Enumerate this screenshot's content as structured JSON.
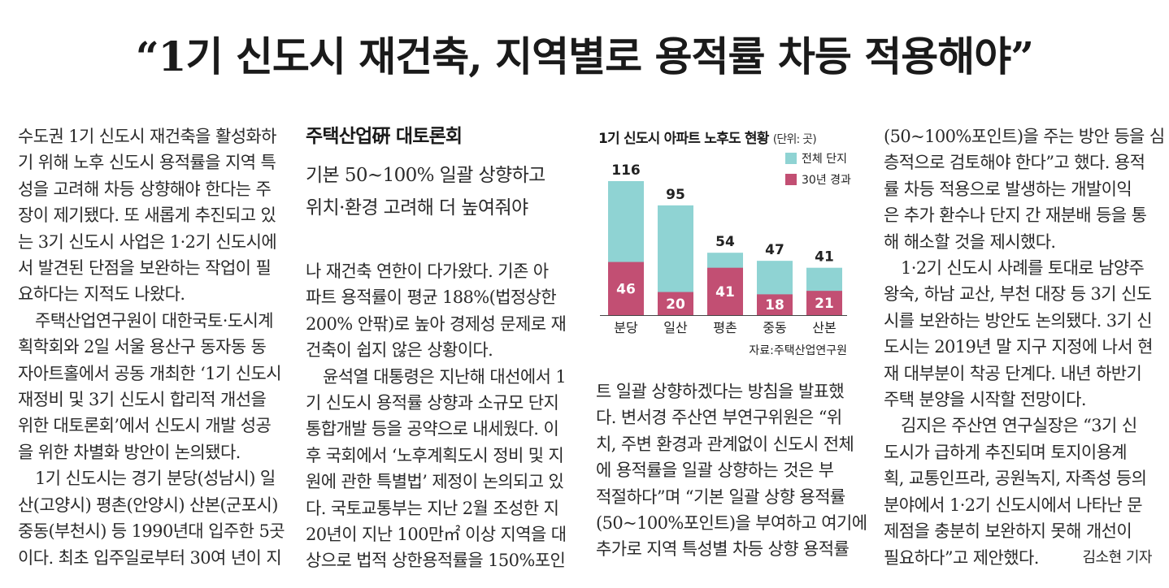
{
  "headline": "“1기 신도시 재건축, 지역별로 용적률 차등 적용해야”",
  "sidebar": {
    "kicker": "주택산업硏 대토론회",
    "subheads": [
      "기본 50~100% 일괄 상향하고",
      "위치·환경 고려해 더 높여줘야"
    ]
  },
  "columns": [
    [
      {
        "text": "수도권 1기 신도시 재건축을 활성화하",
        "indent": false
      },
      {
        "text": "기 위해 노후 신도시 용적률을 지역 특",
        "indent": false
      },
      {
        "text": "성을 고려해 차등 상향해야 한다는 주",
        "indent": false
      },
      {
        "text": "장이 제기됐다. 또 새롭게 추진되고 있",
        "indent": false
      },
      {
        "text": "는 3기 신도시 사업은 1·2기 신도시에",
        "indent": false
      },
      {
        "text": "서 발견된 단점을 보완하는 작업이 필",
        "indent": false
      },
      {
        "text": "요하다는 지적도 나왔다.",
        "indent": false
      },
      {
        "text": "주택산업연구원이 대한국토·도시계",
        "indent": true
      },
      {
        "text": "획학회와 2일 서울 용산구 동자동 동",
        "indent": false
      },
      {
        "text": "자아트홀에서 공동 개최한 ‘1기 신도시",
        "indent": false
      },
      {
        "text": "재정비 및 3기 신도시 합리적 개선을",
        "indent": false
      },
      {
        "text": "위한 대토론회’에서 신도시 개발 성공",
        "indent": false
      },
      {
        "text": "을 위한 차별화 방안이 논의됐다.",
        "indent": false
      },
      {
        "text": "1기 신도시는 경기 분당(성남시) 일",
        "indent": true
      },
      {
        "text": "산(고양시) 평촌(안양시) 산본(군포시)",
        "indent": false
      },
      {
        "text": "중동(부천시) 등 1990년대 입주한 5곳",
        "indent": false
      },
      {
        "text": "이다. 최초 입주일로부터 30여 년이 지",
        "indent": false
      }
    ],
    [
      {
        "text": "나 재건축 연한이 다가왔다. 기존 아",
        "indent": false
      },
      {
        "text": "파트 용적률이 평균 188%(법정상한",
        "indent": false
      },
      {
        "text": "200% 안팎)로 높아 경제성 문제로 재",
        "indent": false
      },
      {
        "text": "건축이 쉽지 않은 상황이다.",
        "indent": false
      },
      {
        "text": "윤석열 대통령은 지난해 대선에서 1",
        "indent": true
      },
      {
        "text": "기 신도시 용적률 상향과 소규모 단지",
        "indent": false
      },
      {
        "text": "통합개발 등을 공약으로 내세웠다. 이",
        "indent": false
      },
      {
        "text": "후 국회에서 ‘노후계획도시 정비 및 지",
        "indent": false
      },
      {
        "text": "원에 관한 특별법’ 제정이 논의되고 있",
        "indent": false
      },
      {
        "text": "다. 국토교통부는 지난 2월 조성한 지",
        "indent": false
      },
      {
        "text": "20년이 지난 100만㎡ 이상 지역을 대",
        "indent": false
      },
      {
        "text": "상으로 법적 상한용적률을 150%포인",
        "indent": false
      }
    ],
    [
      {
        "text": "트 일괄 상향하겠다는 방침을 발표했",
        "indent": false
      },
      {
        "text": "다. 변서경 주산연 부연구위원은 “위",
        "indent": false
      },
      {
        "text": "치, 주변 환경과 관계없이 신도시 전체",
        "indent": false
      },
      {
        "text": "에 용적률을 일괄 상향하는 것은 부",
        "indent": false
      },
      {
        "text": "적절하다”며 “기본 일괄 상향 용적률",
        "indent": false
      },
      {
        "text": "(50~100%포인트)을 부여하고 여기에",
        "indent": false
      },
      {
        "text": "추가로 지역 특성별 차등 상향 용적률",
        "indent": false
      }
    ],
    [
      {
        "text": "(50~100%포인트)을 주는 방안 등을 심",
        "indent": false
      },
      {
        "text": "층적으로 검토해야 한다”고 했다. 용적",
        "indent": false
      },
      {
        "text": "률 차등 적용으로 발생하는 개발이익",
        "indent": false
      },
      {
        "text": "은 추가 환수나 단지 간 재분배 등을 통",
        "indent": false
      },
      {
        "text": "해 해소할 것을 제시했다.",
        "indent": false
      },
      {
        "text": "1·2기 신도시 사례를 토대로 남양주",
        "indent": true
      },
      {
        "text": "왕숙, 하남 교산, 부천 대장 등 3기 신도",
        "indent": false
      },
      {
        "text": "시를 보완하는 방안도 논의됐다. 3기 신",
        "indent": false
      },
      {
        "text": "도시는 2019년 말 지구 지정에 나서 현",
        "indent": false
      },
      {
        "text": "재 대부분이 착공 단계다. 내년 하반기",
        "indent": false
      },
      {
        "text": "주택 분양을 시작할 전망이다.",
        "indent": false
      },
      {
        "text": "김지은 주산연 연구실장은 “3기 신",
        "indent": true
      },
      {
        "text": "도시가 급하게 추진되며 토지이용계",
        "indent": false
      },
      {
        "text": "획, 교통인프라, 공원녹지, 자족성 등의",
        "indent": false
      },
      {
        "text": "분야에서 1·2기 신도시에서 나타난 문",
        "indent": false
      },
      {
        "text": "제점을 충분히 보완하지 못해 개선이",
        "indent": false
      },
      {
        "text": "필요하다”고 제안했다.",
        "indent": false
      }
    ]
  ],
  "byline": "김소현 기자",
  "chart_data": {
    "type": "bar",
    "title": "1기 신도시 아파트 노후도 현황",
    "unit": "(단위: 곳)",
    "categories": [
      "분당",
      "일산",
      "평촌",
      "중동",
      "산본"
    ],
    "series": [
      {
        "name": "전체 단지",
        "values": [
          116,
          95,
          54,
          47,
          41
        ],
        "color": "#8fd3d3"
      },
      {
        "name": "30년 경과",
        "values": [
          46,
          20,
          41,
          18,
          21
        ],
        "color": "#c24f73"
      }
    ],
    "source": "자료:주택산업연구원",
    "ylim": [
      0,
      116
    ]
  }
}
